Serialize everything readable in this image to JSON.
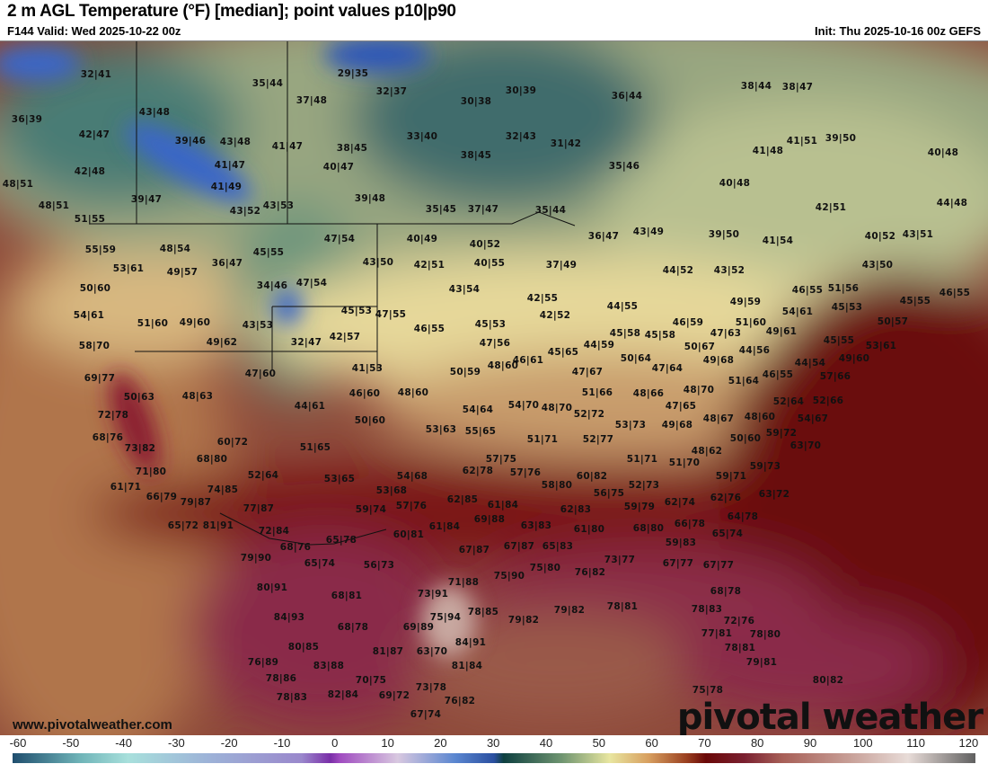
{
  "header": {
    "title": "2 m AGL Temperature (°F) [median]; point values p10|p90",
    "valid": "F144 Valid: Wed 2025-10-22 00z",
    "init": "Init: Thu 2025-10-16 00z GEFS"
  },
  "branding": {
    "url": "www.pivotalweather.com",
    "logo": "pivotal weather"
  },
  "colorbar": {
    "units": "°F",
    "ticks": [
      "-60",
      "-50",
      "-40",
      "-30",
      "-20",
      "-10",
      "0",
      "10",
      "20",
      "30",
      "40",
      "50",
      "60",
      "70",
      "80",
      "90",
      "100",
      "110",
      "120"
    ]
  },
  "colors": {
    "cold_blue": "#3060c0",
    "teal": "#3d6a6c",
    "mild_green": "#9aa880",
    "mild_yellow": "#e6d79a",
    "warm_tan": "#c8a070",
    "hot_red": "#7a1010",
    "very_hot_magenta": "#8a2a48"
  },
  "points": [
    "32|41",
    "35|44",
    "29|35",
    "32|37",
    "30|39",
    "36|44",
    "38|44",
    "38|47",
    "36|39",
    "43|48",
    "37|48",
    "30|38",
    "39|46",
    "43|48",
    "41|47",
    "38|45",
    "33|40",
    "32|43",
    "31|42",
    "41|48",
    "41|51",
    "39|50",
    "40|48",
    "42|47",
    "42|48",
    "41|47",
    "40|47",
    "38|45",
    "35|46",
    "48|51",
    "41|49",
    "40|48",
    "39|47",
    "48|51",
    "43|52",
    "43|53",
    "39|48",
    "35|45",
    "37|47",
    "35|44",
    "42|51",
    "44|48",
    "51|55",
    "55|59",
    "48|54",
    "36|47",
    "45|55",
    "47|54",
    "40|49",
    "40|52",
    "36|47",
    "43|49",
    "39|50",
    "41|54",
    "40|52",
    "43|51",
    "53|61",
    "49|57",
    "43|50",
    "42|51",
    "40|55",
    "37|49",
    "44|52",
    "43|52",
    "43|50",
    "50|60",
    "34|46",
    "47|54",
    "43|54",
    "46|55",
    "51|56",
    "45|55",
    "46|55",
    "54|61",
    "42|55",
    "44|55",
    "49|59",
    "45|53",
    "51|60",
    "49|60",
    "43|53",
    "45|53",
    "47|55",
    "46|55",
    "45|53",
    "42|52",
    "46|59",
    "51|60",
    "54|61",
    "49|61",
    "50|57",
    "58|70",
    "49|62",
    "32|47",
    "42|57",
    "47|56",
    "46|61",
    "45|65",
    "44|59",
    "45|58",
    "45|58",
    "50|64",
    "50|67",
    "47|63",
    "44|56",
    "45|55",
    "53|61",
    "69|77",
    "47|60",
    "41|53",
    "50|59",
    "48|60",
    "47|67",
    "47|64",
    "49|68",
    "51|64",
    "46|55",
    "44|54",
    "49|60",
    "57|66",
    "50|63",
    "48|63",
    "46|60",
    "48|60",
    "54|64",
    "54|70",
    "48|70",
    "51|66",
    "48|66",
    "48|70",
    "52|64",
    "52|66",
    "72|78",
    "44|61",
    "50|60",
    "52|72",
    "47|65",
    "49|68",
    "48|67",
    "48|60",
    "54|67",
    "68|76",
    "53|63",
    "55|65",
    "51|71",
    "52|77",
    "53|73",
    "50|60",
    "59|72",
    "73|82",
    "60|72",
    "51|65",
    "48|62",
    "63|70",
    "68|80",
    "57|75",
    "51|71",
    "51|70",
    "59|73",
    "71|80",
    "52|64",
    "53|65",
    "54|68",
    "62|78",
    "57|76",
    "60|82",
    "59|71",
    "63|72",
    "61|71",
    "74|85",
    "58|80",
    "52|73",
    "53|68",
    "56|75",
    "62|76",
    "62|74",
    "66|79",
    "79|87",
    "77|87",
    "59|74",
    "57|76",
    "62|85",
    "61|84",
    "62|83",
    "59|79",
    "64|78",
    "65|72",
    "81|91",
    "72|84",
    "60|81",
    "61|84",
    "69|88",
    "63|83",
    "61|80",
    "68|80",
    "66|78",
    "65|74",
    "68|76",
    "65|78",
    "67|87",
    "67|87",
    "65|83",
    "59|83",
    "79|90",
    "65|74",
    "56|73",
    "73|77",
    "67|77",
    "67|77",
    "71|88",
    "75|90",
    "75|80",
    "76|82",
    "80|91",
    "68|81",
    "73|91",
    "68|78",
    "84|93",
    "75|94",
    "78|85",
    "79|82",
    "79|82",
    "78|81",
    "78|83",
    "72|76",
    "68|78",
    "69|89",
    "77|81",
    "78|80",
    "80|85",
    "81|87",
    "63|70",
    "84|91",
    "78|81",
    "76|89",
    "83|88",
    "81|84",
    "79|81",
    "78|86",
    "70|75",
    "80|82",
    "78|83",
    "82|84",
    "69|72",
    "73|78",
    "76|82",
    "75|78",
    "67|74"
  ]
}
